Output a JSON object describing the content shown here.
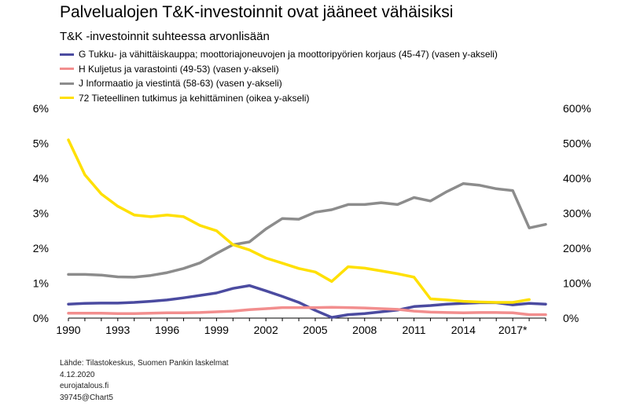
{
  "title": "Palvelualojen T&K-investoinnit ovat jääneet vähäisiksi",
  "subtitle": "T&K -investoinnit suhteessa arvonlisään",
  "footer": {
    "source": "Lähde:  Tilastokeskus,  Suomen  Pankin laskelmat",
    "date": "4.12.2020",
    "site": "eurojatalous.fi",
    "code": "39745@Chart5"
  },
  "chart_data": {
    "type": "line",
    "x_start": 1990,
    "x_end": 2019,
    "x_tick_labels": [
      "1990",
      "1993",
      "1996",
      "1999",
      "2002",
      "2005",
      "2008",
      "2011",
      "2014",
      "2017*"
    ],
    "x_tick_values": [
      1990,
      1993,
      1996,
      1999,
      2002,
      2005,
      2008,
      2011,
      2014,
      2017
    ],
    "y_left": {
      "min": 0,
      "max": 6,
      "ticks": [
        "0%",
        "1%",
        "2%",
        "3%",
        "4%",
        "5%",
        "6%"
      ]
    },
    "y_right": {
      "min": 0,
      "max": 600,
      "ticks": [
        "0%",
        "100%",
        "200%",
        "300%",
        "400%",
        "500%",
        "600%"
      ]
    },
    "grid": false,
    "legend_position": "top-left",
    "series": [
      {
        "name": "G Tukku- ja vähittäiskauppa; moottoriajoneuvojen ja moottoripyörien korjaus (45-47) (vasen y-akseli)",
        "axis": "left",
        "color": "#4b4ba0",
        "start": 1990,
        "values": [
          0.4,
          0.42,
          0.43,
          0.43,
          0.45,
          0.48,
          0.52,
          0.58,
          0.65,
          0.72,
          0.85,
          0.93,
          0.78,
          0.62,
          0.45,
          0.22,
          0.02,
          0.1,
          0.13,
          0.18,
          0.23,
          0.33,
          0.36,
          0.4,
          0.42,
          0.44,
          0.44,
          0.38,
          0.42,
          0.4
        ]
      },
      {
        "name": "H Kuljetus ja varastointi (49-53) (vasen y-akseli)",
        "axis": "left",
        "color": "#f28e8e",
        "start": 1990,
        "values": [
          0.14,
          0.14,
          0.14,
          0.13,
          0.13,
          0.14,
          0.15,
          0.15,
          0.16,
          0.18,
          0.2,
          0.24,
          0.27,
          0.3,
          0.3,
          0.3,
          0.31,
          0.3,
          0.29,
          0.27,
          0.25,
          0.2,
          0.17,
          0.16,
          0.15,
          0.16,
          0.16,
          0.15,
          0.1,
          0.1
        ]
      },
      {
        "name": "J Informaatio ja viestintä (58-63) (vasen y-akseli)",
        "axis": "left",
        "color": "#8c8c8c",
        "start": 1990,
        "values": [
          1.25,
          1.25,
          1.23,
          1.18,
          1.17,
          1.22,
          1.3,
          1.42,
          1.58,
          1.85,
          2.1,
          2.18,
          2.55,
          2.85,
          2.83,
          3.03,
          3.1,
          3.25,
          3.25,
          3.3,
          3.25,
          3.45,
          3.35,
          3.62,
          3.85,
          3.8,
          3.7,
          3.65,
          2.58,
          2.68
        ]
      },
      {
        "name": "72 Tieteellinen tutkimus ja kehittäminen (oikea y-akseli)",
        "axis": "right",
        "color": "#ffe000",
        "start": 1990,
        "values": [
          510,
          410,
          355,
          320,
          295,
          290,
          295,
          290,
          265,
          250,
          210,
          195,
          172,
          157,
          142,
          132,
          105,
          147,
          143,
          135,
          127,
          117,
          55,
          52,
          48,
          46,
          45,
          45,
          53
        ]
      }
    ]
  }
}
